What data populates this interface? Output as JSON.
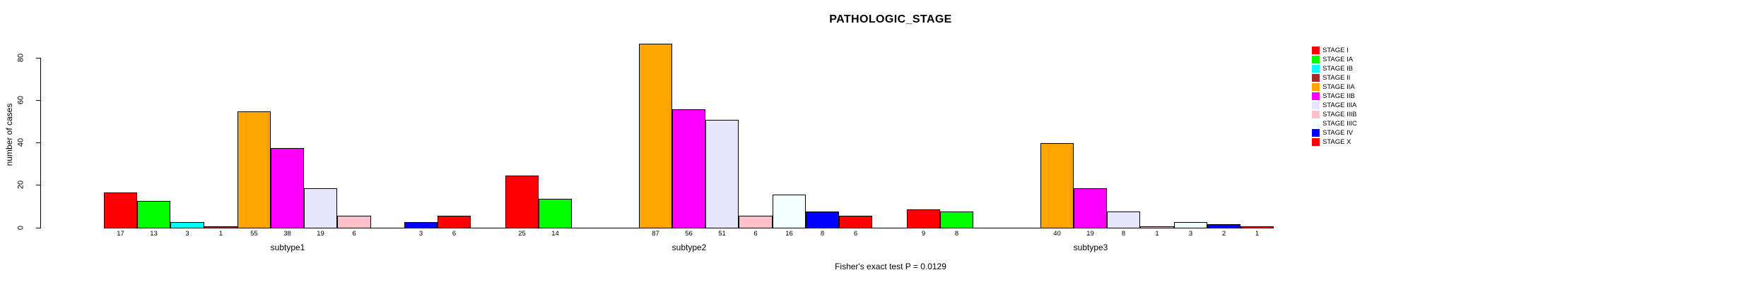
{
  "title": "PATHOLOGIC_STAGE",
  "footer": "Fisher's exact test P = 0.0129",
  "chart_data": {
    "type": "bar",
    "title": "PATHOLOGIC_STAGE",
    "xlabel": "",
    "ylabel": "number of cases",
    "ylim": [
      0,
      80
    ],
    "yticks": [
      0,
      20,
      40,
      60,
      80
    ],
    "grid": false,
    "legend_position": "right",
    "bar_value_labels": "shown under axis for non-zero bars",
    "categories": [
      "subtype1",
      "subtype2",
      "subtype3"
    ],
    "series": [
      {
        "name": "STAGE I",
        "color": "#FF0000",
        "values": [
          17,
          25,
          9
        ]
      },
      {
        "name": "STAGE IA",
        "color": "#00FF00",
        "values": [
          13,
          14,
          8
        ]
      },
      {
        "name": "STAGE IB",
        "color": "#00FFFF",
        "values": [
          3,
          0,
          0
        ]
      },
      {
        "name": "STAGE II",
        "color": "#A52A2A",
        "values": [
          1,
          0,
          0
        ]
      },
      {
        "name": "STAGE IIA",
        "color": "#FFA500",
        "values": [
          55,
          87,
          40
        ]
      },
      {
        "name": "STAGE IIB",
        "color": "#FF00FF",
        "values": [
          38,
          56,
          19
        ]
      },
      {
        "name": "STAGE IIIA",
        "color": "#E6E6FA",
        "values": [
          19,
          51,
          8
        ]
      },
      {
        "name": "STAGE IIIB",
        "color": "#FFC0CB",
        "values": [
          6,
          6,
          1
        ]
      },
      {
        "name": "STAGE IIIC",
        "color": "#F0FFFF",
        "values": [
          0,
          16,
          3
        ]
      },
      {
        "name": "STAGE IV",
        "color": "#0000FF",
        "values": [
          3,
          8,
          2
        ]
      },
      {
        "name": "STAGE X",
        "color": "#FF0000",
        "values": [
          6,
          6,
          1
        ]
      }
    ],
    "footer": "Fisher's exact test P = 0.0129"
  }
}
